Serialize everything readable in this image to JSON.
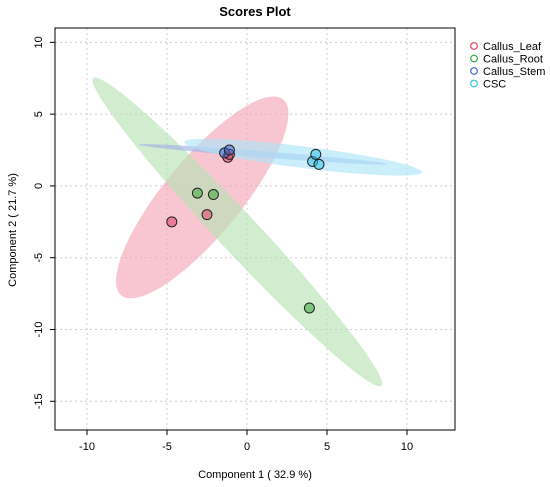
{
  "chart_data": {
    "type": "scatter",
    "title": "Scores Plot",
    "xlabel": "Component 1 ( 32.9 %)",
    "ylabel": "Component 2 ( 21.7 %)",
    "xlim": [
      -12,
      13
    ],
    "ylim": [
      -17,
      11
    ],
    "x_ticks": [
      -10,
      -5,
      0,
      5,
      10
    ],
    "y_ticks": [
      -15,
      -10,
      -5,
      0,
      5,
      10
    ],
    "grid": true,
    "legend_position": "top-right",
    "series": [
      {
        "name": "Callus_Leaf",
        "color": "#e0406a",
        "ellipse_color": "#f4a7b9",
        "points": [
          {
            "x": -4.7,
            "y": -2.5
          },
          {
            "x": -2.5,
            "y": -2.0
          },
          {
            "x": -1.2,
            "y": 2.0
          },
          {
            "x": -1.1,
            "y": 2.2
          }
        ],
        "ellipse": {
          "cx": -2.8,
          "cy": -0.8,
          "rx": 8.5,
          "ry": 2.5,
          "angle_deg": 54
        }
      },
      {
        "name": "Callus_Root",
        "color": "#3aa83a",
        "ellipse_color": "#b9e2b4",
        "points": [
          {
            "x": -3.1,
            "y": -0.5
          },
          {
            "x": -2.1,
            "y": -0.6
          },
          {
            "x": 3.9,
            "y": -8.5
          }
        ],
        "ellipse": {
          "cx": -0.6,
          "cy": -3.2,
          "rx": 14.0,
          "ry": 1.3,
          "angle_deg": -50
        }
      },
      {
        "name": "Callus_Stem",
        "color": "#4466cc",
        "ellipse_color": "#9fb4e8",
        "points": [
          {
            "x": -1.4,
            "y": 2.3
          },
          {
            "x": -1.1,
            "y": 2.5
          }
        ],
        "ellipse": {
          "cx": 1.0,
          "cy": 2.2,
          "rx": 7.8,
          "ry": 0.22,
          "angle_deg": -5
        }
      },
      {
        "name": "CSC",
        "color": "#34c4e8",
        "ellipse_color": "#aee5f7",
        "points": [
          {
            "x": 4.1,
            "y": 1.7
          },
          {
            "x": 4.3,
            "y": 2.2
          },
          {
            "x": 4.5,
            "y": 1.5
          }
        ],
        "ellipse": {
          "cx": 3.5,
          "cy": 2.0,
          "rx": 7.5,
          "ry": 0.75,
          "angle_deg": -8
        }
      }
    ]
  }
}
